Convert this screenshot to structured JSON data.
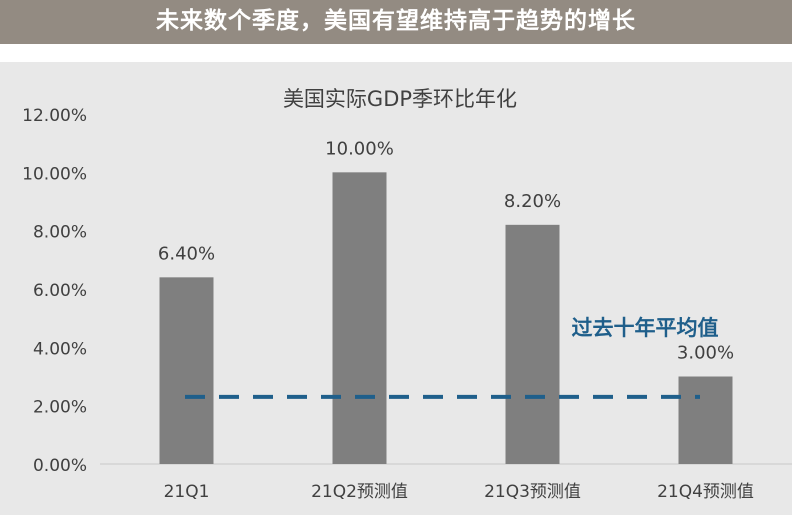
{
  "banner": {
    "text": "未来数个季度，美国有望维持高于趋势的增长"
  },
  "colors": {
    "banner": "#938b82",
    "panel": "#e8e8e8",
    "bar": "#7f7f7f",
    "avg_line": "#1f5f8b",
    "text": "#404040"
  },
  "chart_data": {
    "type": "bar",
    "title": "美国实际GDP季环比年化",
    "categories": [
      "21Q1",
      "21Q2预测值",
      "21Q3预测值",
      "21Q4预测值"
    ],
    "values": [
      6.4,
      10.0,
      8.2,
      3.0
    ],
    "value_labels": [
      "6.40%",
      "10.00%",
      "8.20%",
      "3.00%"
    ],
    "ylim": [
      0,
      12
    ],
    "yticks": [
      0,
      2,
      4,
      6,
      8,
      10,
      12
    ],
    "ytick_labels": [
      "0.00%",
      "2.00%",
      "4.00%",
      "6.00%",
      "8.00%",
      "10.00%",
      "12.00%"
    ],
    "reference_line": {
      "label": "过去十年平均值",
      "value": 2.3,
      "style": "dashed"
    },
    "grid": false,
    "legend": "none"
  }
}
